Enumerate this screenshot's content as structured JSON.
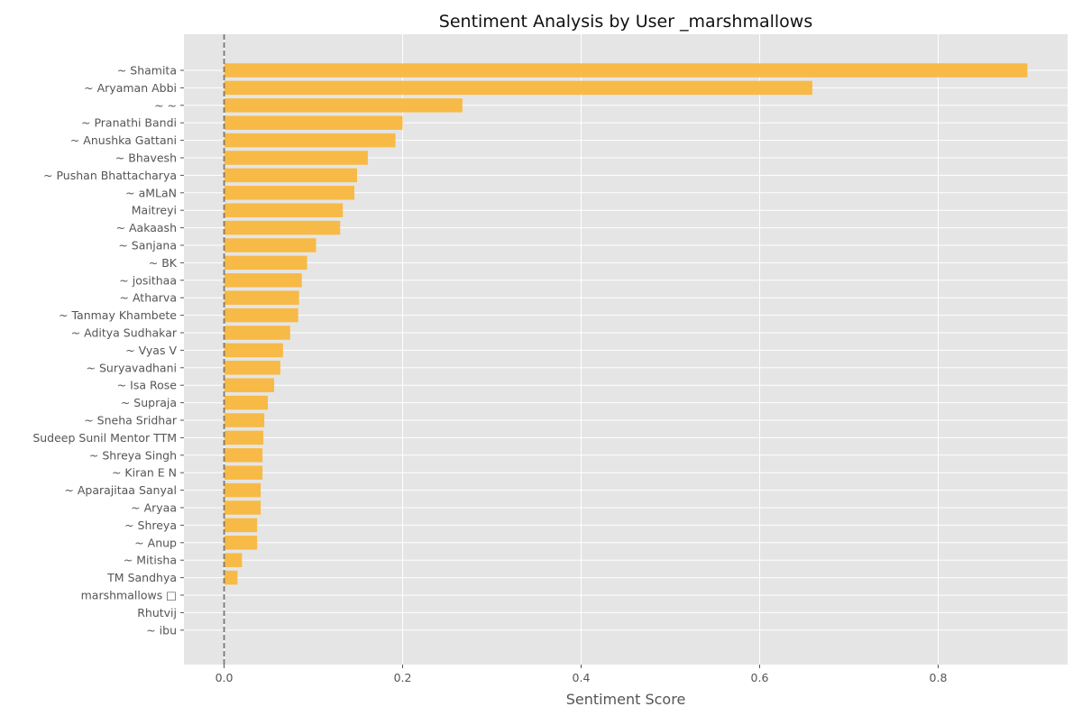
{
  "chart_data": {
    "type": "bar",
    "orientation": "horizontal",
    "title": "Sentiment Analysis by User _marshmallows",
    "xlabel": "Sentiment Score",
    "ylabel": "",
    "xlim": [
      -0.045,
      0.945
    ],
    "xticks": [
      0.0,
      0.2,
      0.4,
      0.6,
      0.8
    ],
    "xtick_labels": [
      "0.0",
      "0.2",
      "0.4",
      "0.6",
      "0.8"
    ],
    "grid": true,
    "reference_line": 0.0,
    "colors": {
      "bar": "#f8b73d",
      "background": "#e5e5e5",
      "grid": "#ffffff",
      "reference_line": "#7a7a7a",
      "text": "#555555",
      "title": "#111111"
    },
    "categories": [
      "~ Shamita",
      "~ Aryaman Abbi",
      "~ ~",
      "~ Pranathi Bandi",
      "~ Anushka Gattani",
      "~ Bhavesh",
      "~ Pushan Bhattacharya",
      "~ aMLaN",
      "Maitreyi",
      "~ Aakaash",
      "~ Sanjana",
      "~ BK",
      "~ josithaa",
      "~ Atharva",
      "~ Tanmay Khambete",
      "~ Aditya Sudhakar",
      "~ Vyas V",
      "~ Suryavadhani",
      "~ Isa Rose",
      "~ Supraja",
      "~ Sneha Sridhar",
      "Sudeep Sunil Mentor TTM",
      "~ Shreya Singh",
      "~ Kiran E N",
      "~ Aparajitaa Sanyal",
      "~ Aryaa",
      "~ Shreya",
      "~ Anup",
      "~ Mitisha",
      "TM Sandhya",
      "marshmallows □",
      "Rhutvij",
      "~ ibu"
    ],
    "values": [
      0.9,
      0.659,
      0.267,
      0.2,
      0.192,
      0.161,
      0.149,
      0.146,
      0.133,
      0.13,
      0.103,
      0.093,
      0.087,
      0.084,
      0.083,
      0.074,
      0.066,
      0.063,
      0.056,
      0.049,
      0.045,
      0.044,
      0.043,
      0.043,
      0.041,
      0.041,
      0.037,
      0.037,
      0.02,
      0.015,
      0.0,
      0.0,
      0.0
    ]
  }
}
